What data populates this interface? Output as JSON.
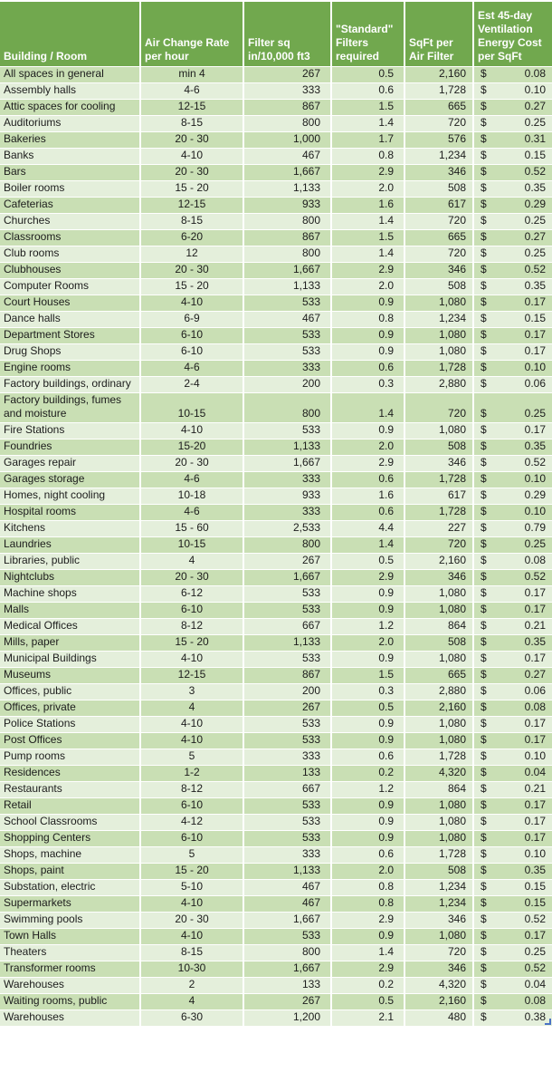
{
  "colors": {
    "header_bg": "#71a84e",
    "band_medium": "#c9dfb4",
    "band_light": "#e4efdb",
    "header_text": "#ffffff",
    "body_text": "#1c1c1c",
    "grid": "#ffffff",
    "handle_blue": "#4a72c4",
    "error_marker_green": "#3f7a28"
  },
  "table": {
    "currency_symbol": "$",
    "columns": [
      {
        "key": "building",
        "label": "Building / Room"
      },
      {
        "key": "rate",
        "label": "Air Change Rate\nper hour"
      },
      {
        "key": "filter_sq",
        "label": "Filter sq\nin/10,000 ft3"
      },
      {
        "key": "filters_required",
        "label": "\"Standard\"\nFilters\nrequired"
      },
      {
        "key": "sqft_per_filter",
        "label": "SqFt per\nAir Filter"
      },
      {
        "key": "cost",
        "label": "Est 45-day\nVentilation\nEnergy Cost\nper SqFt"
      }
    ],
    "rows": [
      {
        "building": "All spaces in general",
        "rate": "min 4",
        "filter_sq": "267",
        "filters_required": "0.5",
        "sqft_per_filter": "2,160",
        "cost": "0.08"
      },
      {
        "building": "Assembly halls",
        "rate": "4-6",
        "filter_sq": "333",
        "filters_required": "0.6",
        "sqft_per_filter": "1,728",
        "cost": "0.10"
      },
      {
        "building": "Attic spaces for cooling",
        "rate": "12-15",
        "filter_sq": "867",
        "filters_required": "1.5",
        "sqft_per_filter": "665",
        "cost": "0.27"
      },
      {
        "building": "Auditoriums",
        "rate": "8-15",
        "filter_sq": "800",
        "filters_required": "1.4",
        "sqft_per_filter": "720",
        "cost": "0.25"
      },
      {
        "building": "Bakeries",
        "rate": "20 - 30",
        "filter_sq": "1,000",
        "filters_required": "1.7",
        "sqft_per_filter": "576",
        "cost": "0.31"
      },
      {
        "building": "Banks",
        "rate": "4-10",
        "filter_sq": "467",
        "filters_required": "0.8",
        "sqft_per_filter": "1,234",
        "cost": "0.15"
      },
      {
        "building": "Bars",
        "rate": "20 - 30",
        "filter_sq": "1,667",
        "filters_required": "2.9",
        "sqft_per_filter": "346",
        "cost": "0.52"
      },
      {
        "building": "Boiler rooms",
        "rate": "15 - 20",
        "filter_sq": "1,133",
        "filters_required": "2.0",
        "sqft_per_filter": "508",
        "cost": "0.35"
      },
      {
        "building": "Cafeterias",
        "rate": "12-15",
        "filter_sq": "933",
        "filters_required": "1.6",
        "sqft_per_filter": "617",
        "cost": "0.29"
      },
      {
        "building": "Churches",
        "rate": "8-15",
        "filter_sq": "800",
        "filters_required": "1.4",
        "sqft_per_filter": "720",
        "cost": "0.25"
      },
      {
        "building": "Classrooms",
        "rate": "6-20",
        "filter_sq": "867",
        "filters_required": "1.5",
        "sqft_per_filter": "665",
        "cost": "0.27"
      },
      {
        "building": "Club rooms",
        "rate": "12",
        "filter_sq": "800",
        "filters_required": "1.4",
        "sqft_per_filter": "720",
        "cost": "0.25"
      },
      {
        "building": "Clubhouses",
        "rate": "20 - 30",
        "filter_sq": "1,667",
        "filters_required": "2.9",
        "sqft_per_filter": "346",
        "cost": "0.52"
      },
      {
        "building": "Computer Rooms",
        "rate": "15 - 20",
        "filter_sq": "1,133",
        "filters_required": "2.0",
        "sqft_per_filter": "508",
        "cost": "0.35"
      },
      {
        "building": "Court Houses",
        "rate": "4-10",
        "filter_sq": "533",
        "filters_required": "0.9",
        "sqft_per_filter": "1,080",
        "cost": "0.17"
      },
      {
        "building": "Dance halls",
        "rate": "6-9",
        "filter_sq": "467",
        "filters_required": "0.8",
        "sqft_per_filter": "1,234",
        "cost": "0.15"
      },
      {
        "building": "Department Stores",
        "rate": "6-10",
        "filter_sq": "533",
        "filters_required": "0.9",
        "sqft_per_filter": "1,080",
        "cost": "0.17"
      },
      {
        "building": "Drug Shops",
        "rate": "6-10",
        "filter_sq": "533",
        "filters_required": "0.9",
        "sqft_per_filter": "1,080",
        "cost": "0.17"
      },
      {
        "building": "Engine rooms",
        "rate": "4-6",
        "filter_sq": "333",
        "filters_required": "0.6",
        "sqft_per_filter": "1,728",
        "cost": "0.10"
      },
      {
        "building": "Factory buildings, ordinary",
        "rate": "2-4",
        "filter_sq": "200",
        "filters_required": "0.3",
        "sqft_per_filter": "2,880",
        "cost": "0.06"
      },
      {
        "building": "Factory buildings, fumes and moisture",
        "rate": "10-15",
        "filter_sq": "800",
        "filters_required": "1.4",
        "sqft_per_filter": "720",
        "cost": "0.25"
      },
      {
        "building": "Fire Stations",
        "rate": "4-10",
        "filter_sq": "533",
        "filters_required": "0.9",
        "sqft_per_filter": "1,080",
        "cost": "0.17"
      },
      {
        "building": "Foundries",
        "rate": "15-20",
        "filter_sq": "1,133",
        "filters_required": "2.0",
        "sqft_per_filter": "508",
        "cost": "0.35"
      },
      {
        "building": "Garages repair",
        "rate": "20 - 30",
        "filter_sq": "1,667",
        "filters_required": "2.9",
        "sqft_per_filter": "346",
        "cost": "0.52"
      },
      {
        "building": "Garages storage",
        "rate": "4-6",
        "filter_sq": "333",
        "filters_required": "0.6",
        "sqft_per_filter": "1,728",
        "cost": "0.10"
      },
      {
        "building": "Homes, night cooling",
        "rate": "10-18",
        "filter_sq": "933",
        "filters_required": "1.6",
        "sqft_per_filter": "617",
        "cost": "0.29"
      },
      {
        "building": "Hospital rooms",
        "rate": "4-6",
        "filter_sq": "333",
        "filters_required": "0.6",
        "sqft_per_filter": "1,728",
        "cost": "0.10"
      },
      {
        "building": "Kitchens",
        "rate": "15 - 60",
        "filter_sq": "2,533",
        "filters_required": "4.4",
        "sqft_per_filter": "227",
        "cost": "0.79"
      },
      {
        "building": "Laundries",
        "rate": "10-15",
        "filter_sq": "800",
        "filters_required": "1.4",
        "sqft_per_filter": "720",
        "cost": "0.25"
      },
      {
        "building": "Libraries, public",
        "rate": "4",
        "filter_sq": "267",
        "filters_required": "0.5",
        "sqft_per_filter": "2,160",
        "cost": "0.08"
      },
      {
        "building": "Nightclubs",
        "rate": "20 - 30",
        "filter_sq": "1,667",
        "filters_required": "2.9",
        "sqft_per_filter": "346",
        "cost": "0.52"
      },
      {
        "building": "Machine shops",
        "rate": "6-12",
        "filter_sq": "533",
        "filters_required": "0.9",
        "sqft_per_filter": "1,080",
        "cost": "0.17"
      },
      {
        "building": "Malls",
        "rate": "6-10",
        "filter_sq": "533",
        "filters_required": "0.9",
        "sqft_per_filter": "1,080",
        "cost": "0.17"
      },
      {
        "building": "Medical Offices",
        "rate": "8-12",
        "filter_sq": "667",
        "filters_required": "1.2",
        "sqft_per_filter": "864",
        "cost": "0.21"
      },
      {
        "building": "Mills, paper",
        "rate": "15 - 20",
        "filter_sq": "1,133",
        "filters_required": "2.0",
        "sqft_per_filter": "508",
        "cost": "0.35"
      },
      {
        "building": "Municipal Buildings",
        "rate": "4-10",
        "filter_sq": "533",
        "filters_required": "0.9",
        "sqft_per_filter": "1,080",
        "cost": "0.17"
      },
      {
        "building": "Museums",
        "rate": "12-15",
        "filter_sq": "867",
        "filters_required": "1.5",
        "sqft_per_filter": "665",
        "cost": "0.27"
      },
      {
        "building": "Offices, public",
        "rate": "3",
        "filter_sq": "200",
        "filters_required": "0.3",
        "sqft_per_filter": "2,880",
        "cost": "0.06"
      },
      {
        "building": "Offices, private",
        "rate": "4",
        "filter_sq": "267",
        "filters_required": "0.5",
        "sqft_per_filter": "2,160",
        "cost": "0.08"
      },
      {
        "building": "Police Stations",
        "rate": "4-10",
        "filter_sq": "533",
        "filters_required": "0.9",
        "sqft_per_filter": "1,080",
        "cost": "0.17"
      },
      {
        "building": "Post Offices",
        "rate": "4-10",
        "filter_sq": "533",
        "filters_required": "0.9",
        "sqft_per_filter": "1,080",
        "cost": "0.17"
      },
      {
        "building": "Pump rooms",
        "rate": "5",
        "filter_sq": "333",
        "filters_required": "0.6",
        "sqft_per_filter": "1,728",
        "cost": "0.10"
      },
      {
        "building": "Residences",
        "rate": "1-2",
        "filter_sq": "133",
        "filters_required": "0.2",
        "sqft_per_filter": "4,320",
        "cost": "0.04"
      },
      {
        "building": "Restaurants",
        "rate": "8-12",
        "filter_sq": "667",
        "filters_required": "1.2",
        "sqft_per_filter": "864",
        "cost": "0.21"
      },
      {
        "building": "Retail",
        "rate": "6-10",
        "filter_sq": "533",
        "filters_required": "0.9",
        "sqft_per_filter": "1,080",
        "cost": "0.17"
      },
      {
        "building": "School Classrooms",
        "rate": "4-12",
        "filter_sq": "533",
        "filters_required": "0.9",
        "sqft_per_filter": "1,080",
        "cost": "0.17"
      },
      {
        "building": "Shopping Centers",
        "rate": "6-10",
        "filter_sq": "533",
        "filters_required": "0.9",
        "sqft_per_filter": "1,080",
        "cost": "0.17"
      },
      {
        "building": "Shops, machine",
        "rate": "5",
        "filter_sq": "333",
        "filters_required": "0.6",
        "sqft_per_filter": "1,728",
        "cost": "0.10"
      },
      {
        "building": "Shops, paint",
        "rate": "15 - 20",
        "filter_sq": "1,133",
        "filters_required": "2.0",
        "sqft_per_filter": "508",
        "cost": "0.35"
      },
      {
        "building": "Substation, electric",
        "rate": "5-10",
        "filter_sq": "467",
        "filters_required": "0.8",
        "sqft_per_filter": "1,234",
        "cost": "0.15"
      },
      {
        "building": "Supermarkets",
        "rate": "4-10",
        "filter_sq": "467",
        "filters_required": "0.8",
        "sqft_per_filter": "1,234",
        "cost": "0.15"
      },
      {
        "building": "Swimming pools",
        "rate": "20 - 30",
        "filter_sq": "1,667",
        "filters_required": "2.9",
        "sqft_per_filter": "346",
        "cost": "0.52"
      },
      {
        "building": "Town Halls",
        "rate": "4-10",
        "filter_sq": "533",
        "filters_required": "0.9",
        "sqft_per_filter": "1,080",
        "cost": "0.17"
      },
      {
        "building": "Theaters",
        "rate": "8-15",
        "filter_sq": "800",
        "filters_required": "1.4",
        "sqft_per_filter": "720",
        "cost": "0.25"
      },
      {
        "building": "Transformer rooms",
        "rate": "10-30",
        "filter_sq": "1,667",
        "filters_required": "2.9",
        "sqft_per_filter": "346",
        "cost": "0.52"
      },
      {
        "building": "Warehouses",
        "rate": "2",
        "filter_sq": "133",
        "filters_required": "0.2",
        "sqft_per_filter": "4,320",
        "cost": "0.04"
      },
      {
        "building": "Waiting rooms, public",
        "rate": "4",
        "filter_sq": "267",
        "filters_required": "0.5",
        "sqft_per_filter": "2,160",
        "cost": "0.08"
      },
      {
        "building": "Warehouses",
        "rate": "6-30",
        "filter_sq": "1,200",
        "filters_required": "2.1",
        "sqft_per_filter": "480",
        "cost": "0.38"
      }
    ]
  },
  "markers": {
    "error_indicator_row_index": 11,
    "error_indicator_column": "rate"
  }
}
